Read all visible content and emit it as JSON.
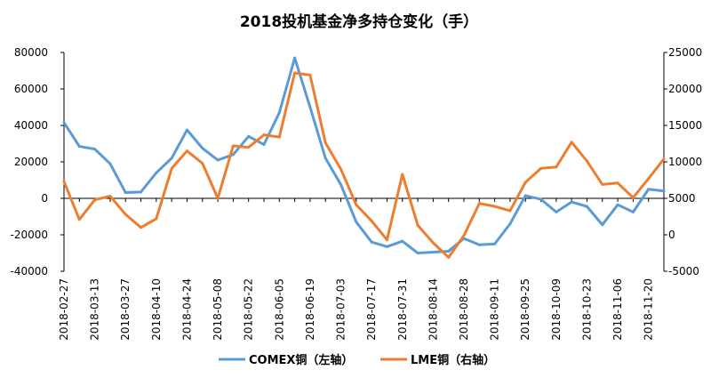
{
  "chart_data": {
    "type": "line",
    "title": "2018投机基金净多持仓变化（手）",
    "x": [
      "2018-02-27",
      "2018-03-06",
      "2018-03-13",
      "2018-03-20",
      "2018-03-27",
      "2018-04-03",
      "2018-04-10",
      "2018-04-17",
      "2018-04-24",
      "2018-05-01",
      "2018-05-08",
      "2018-05-15",
      "2018-05-22",
      "2018-05-29",
      "2018-06-05",
      "2018-06-12",
      "2018-06-19",
      "2018-06-26",
      "2018-07-03",
      "2018-07-10",
      "2018-07-17",
      "2018-07-24",
      "2018-07-31",
      "2018-08-07",
      "2018-08-14",
      "2018-08-21",
      "2018-08-28",
      "2018-09-04",
      "2018-09-11",
      "2018-09-18",
      "2018-09-25",
      "2018-10-02",
      "2018-10-09",
      "2018-10-16",
      "2018-10-23",
      "2018-10-30",
      "2018-11-06",
      "2018-11-13",
      "2018-11-20",
      "2018-11-27"
    ],
    "xtick_labels": [
      "2018-02-27",
      "2018-03-13",
      "2018-03-27",
      "2018-04-10",
      "2018-04-24",
      "2018-05-08",
      "2018-05-22",
      "2018-06-05",
      "2018-06-19",
      "2018-07-03",
      "2018-07-17",
      "2018-07-31",
      "2018-08-14",
      "2018-08-28",
      "2018-09-11",
      "2018-09-25",
      "2018-10-09",
      "2018-10-23",
      "2018-11-06",
      "2018-11-20"
    ],
    "y_left": {
      "ylim": [
        -40000,
        80000
      ],
      "ticks": [
        80000,
        60000,
        40000,
        20000,
        0,
        -20000,
        -40000
      ]
    },
    "y_right": {
      "ylim": [
        -5000,
        25000
      ],
      "ticks": [
        25000,
        20000,
        15000,
        10000,
        5000,
        0,
        -5000
      ]
    },
    "series": [
      {
        "name": "COMEX铜（左轴）",
        "axis": "left",
        "color": "#5B9BD5",
        "values": [
          41500,
          28500,
          27000,
          19000,
          3200,
          3500,
          14000,
          22000,
          37500,
          27500,
          21000,
          24000,
          34000,
          29500,
          47000,
          77000,
          50000,
          22000,
          7500,
          -13000,
          -24000,
          -26500,
          -23500,
          -30000,
          -29500,
          -29000,
          -22000,
          -25500,
          -25000,
          -14000,
          1500,
          -500,
          -7500,
          -2000,
          -4500,
          -14500,
          -3500,
          -7500,
          5000,
          4000
        ]
      },
      {
        "name": "LME铜（右轴）",
        "axis": "right",
        "color": "#ED7D31",
        "values": [
          7300,
          2100,
          4800,
          5300,
          2800,
          1000,
          2200,
          9100,
          11500,
          9800,
          5000,
          12200,
          12000,
          13700,
          13400,
          22200,
          21900,
          12600,
          9000,
          4100,
          1900,
          -700,
          8300,
          1300,
          -1100,
          -3100,
          -100,
          4300,
          3900,
          3300,
          7200,
          9100,
          9300,
          12700,
          10100,
          6900,
          7100,
          5100,
          7700,
          10400
        ]
      }
    ],
    "legend": "bottom",
    "grid": false
  }
}
